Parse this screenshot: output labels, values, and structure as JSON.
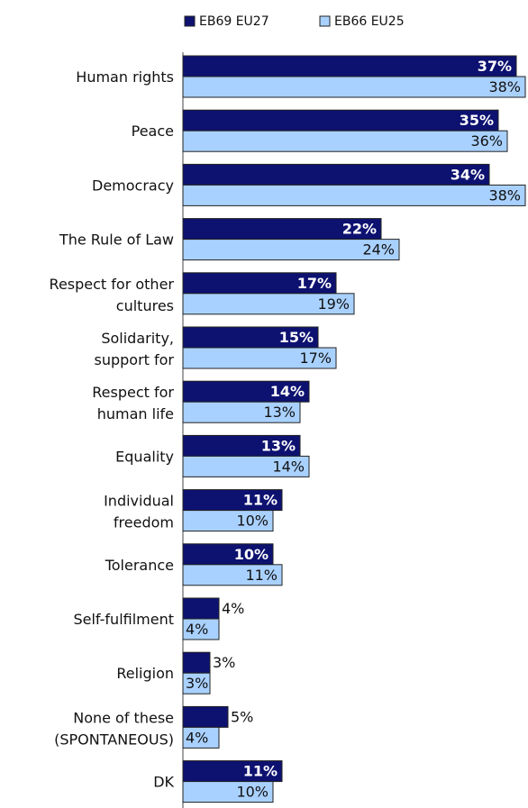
{
  "chart_data": {
    "type": "bar",
    "orientation": "horizontal",
    "categories": [
      "Human rights",
      "Peace",
      "Democracy",
      "The Rule of Law",
      "Respect for other cultures",
      "Solidarity, support for",
      "Respect for human life",
      "Equality",
      "Individual freedom",
      "Tolerance",
      "Self-fulfilment",
      "Religion",
      "None of these (SPONTANEOUS)",
      "DK"
    ],
    "category_lines": [
      [
        "Human rights"
      ],
      [
        "Peace"
      ],
      [
        "Democracy"
      ],
      [
        "The Rule of Law"
      ],
      [
        "Respect for other",
        "cultures"
      ],
      [
        "Solidarity,",
        "support for"
      ],
      [
        "Respect for",
        "human life"
      ],
      [
        "Equality"
      ],
      [
        "Individual",
        "freedom"
      ],
      [
        "Tolerance"
      ],
      [
        "Self-fulfilment"
      ],
      [
        "Religion"
      ],
      [
        "None of these",
        "(SPONTANEOUS)"
      ],
      [
        "DK"
      ]
    ],
    "series": [
      {
        "name": "EB69 EU27",
        "color": "#0d1170",
        "values": [
          37,
          35,
          34,
          22,
          17,
          15,
          14,
          13,
          11,
          10,
          4,
          3,
          5,
          11
        ],
        "labels": [
          "37%",
          "35%",
          "34%",
          "22%",
          "17%",
          "15%",
          "14%",
          "13%",
          "11%",
          "10%",
          "4%",
          "3%",
          "5%",
          "11%"
        ]
      },
      {
        "name": "EB66 EU25",
        "color": "#a9d1ff",
        "values": [
          38,
          36,
          38,
          24,
          19,
          17,
          13,
          14,
          10,
          11,
          4,
          3,
          4,
          10
        ],
        "labels": [
          "38%",
          "36%",
          "38%",
          "24%",
          "19%",
          "17%",
          "13%",
          "14%",
          "10%",
          "11%",
          "4%",
          "3%",
          "4%",
          "10%"
        ]
      }
    ],
    "xlim": [
      0,
      38
    ],
    "grid": false,
    "legend_position": "top"
  }
}
